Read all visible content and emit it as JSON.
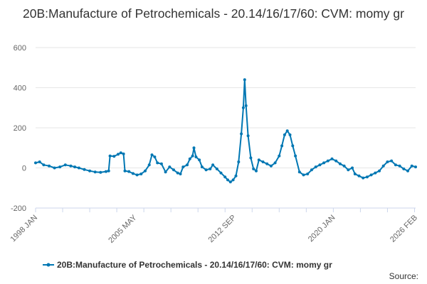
{
  "chart_data": {
    "type": "line",
    "title": "20B:Manufacture of Petrochemicals - 20.14/16/17/60: CVM: momy gr",
    "xlabel": "",
    "ylabel": "",
    "ylim": [
      -200,
      600
    ],
    "y_ticks": [
      "600",
      "400",
      "200",
      "0",
      "-200"
    ],
    "x_range": [
      1998.0,
      2026.08
    ],
    "x_tick_labels": [
      "1998 JAN",
      "2005 MAY",
      "2012 SEP",
      "2020 JAN",
      "2026 FEB"
    ],
    "x_tick_values": [
      1998.0,
      2005.33,
      2012.67,
      2020.0,
      2026.08
    ],
    "grid": "horizontal",
    "legend_position": "bottom",
    "series": [
      {
        "name": "20B:Manufacture of Petrochemicals - 20.14/16/17/60: CVM: momy gr",
        "color": "#0077b3",
        "points": [
          [
            1998.0,
            25
          ],
          [
            1998.3,
            30
          ],
          [
            1998.6,
            15
          ],
          [
            1999.0,
            10
          ],
          [
            1999.4,
            0
          ],
          [
            1999.8,
            5
          ],
          [
            2000.2,
            15
          ],
          [
            2000.6,
            10
          ],
          [
            2000.9,
            5
          ],
          [
            2001.2,
            0
          ],
          [
            2001.6,
            -8
          ],
          [
            2002.0,
            -15
          ],
          [
            2002.4,
            -20
          ],
          [
            2002.8,
            -22
          ],
          [
            2003.2,
            -18
          ],
          [
            2003.4,
            -15
          ],
          [
            2003.5,
            60
          ],
          [
            2003.8,
            58
          ],
          [
            2004.1,
            68
          ],
          [
            2004.3,
            75
          ],
          [
            2004.5,
            70
          ],
          [
            2004.6,
            -15
          ],
          [
            2004.9,
            -18
          ],
          [
            2005.2,
            -28
          ],
          [
            2005.5,
            -35
          ],
          [
            2005.8,
            -30
          ],
          [
            2006.1,
            -15
          ],
          [
            2006.4,
            15
          ],
          [
            2006.6,
            65
          ],
          [
            2006.8,
            55
          ],
          [
            2007.0,
            25
          ],
          [
            2007.3,
            20
          ],
          [
            2007.6,
            -20
          ],
          [
            2007.9,
            5
          ],
          [
            2008.2,
            -10
          ],
          [
            2008.5,
            -25
          ],
          [
            2008.7,
            -30
          ],
          [
            2008.9,
            5
          ],
          [
            2009.2,
            15
          ],
          [
            2009.4,
            45
          ],
          [
            2009.6,
            60
          ],
          [
            2009.7,
            100
          ],
          [
            2009.85,
            55
          ],
          [
            2010.1,
            40
          ],
          [
            2010.3,
            5
          ],
          [
            2010.6,
            -10
          ],
          [
            2010.9,
            -5
          ],
          [
            2011.1,
            15
          ],
          [
            2011.4,
            -5
          ],
          [
            2011.7,
            -25
          ],
          [
            2012.0,
            -45
          ],
          [
            2012.2,
            -60
          ],
          [
            2012.4,
            -70
          ],
          [
            2012.6,
            -60
          ],
          [
            2012.8,
            -40
          ],
          [
            2013.0,
            30
          ],
          [
            2013.2,
            170
          ],
          [
            2013.35,
            300
          ],
          [
            2013.45,
            440
          ],
          [
            2013.55,
            310
          ],
          [
            2013.7,
            160
          ],
          [
            2013.9,
            50
          ],
          [
            2014.1,
            -5
          ],
          [
            2014.3,
            -15
          ],
          [
            2014.5,
            40
          ],
          [
            2014.8,
            30
          ],
          [
            2015.1,
            20
          ],
          [
            2015.4,
            10
          ],
          [
            2015.7,
            25
          ],
          [
            2016.0,
            60
          ],
          [
            2016.2,
            110
          ],
          [
            2016.4,
            165
          ],
          [
            2016.6,
            185
          ],
          [
            2016.8,
            165
          ],
          [
            2017.0,
            110
          ],
          [
            2017.2,
            60
          ],
          [
            2017.5,
            -20
          ],
          [
            2017.8,
            -35
          ],
          [
            2018.1,
            -30
          ],
          [
            2018.4,
            -10
          ],
          [
            2018.7,
            5
          ],
          [
            2019.0,
            15
          ],
          [
            2019.3,
            25
          ],
          [
            2019.6,
            35
          ],
          [
            2019.9,
            45
          ],
          [
            2020.2,
            35
          ],
          [
            2020.5,
            20
          ],
          [
            2020.8,
            10
          ],
          [
            2021.1,
            -10
          ],
          [
            2021.4,
            0
          ],
          [
            2021.6,
            -30
          ],
          [
            2021.9,
            -40
          ],
          [
            2022.2,
            -50
          ],
          [
            2022.5,
            -45
          ],
          [
            2022.8,
            -35
          ],
          [
            2023.1,
            -25
          ],
          [
            2023.4,
            -15
          ],
          [
            2023.7,
            10
          ],
          [
            2024.0,
            30
          ],
          [
            2024.3,
            35
          ],
          [
            2024.6,
            15
          ],
          [
            2024.9,
            10
          ],
          [
            2025.2,
            -5
          ],
          [
            2025.5,
            -15
          ],
          [
            2025.8,
            10
          ],
          [
            2026.08,
            5
          ]
        ]
      }
    ],
    "legend": "20B:Manufacture of Petrochemicals - 20.14/16/17/60: CVM: momy gr",
    "source": "Source:"
  }
}
